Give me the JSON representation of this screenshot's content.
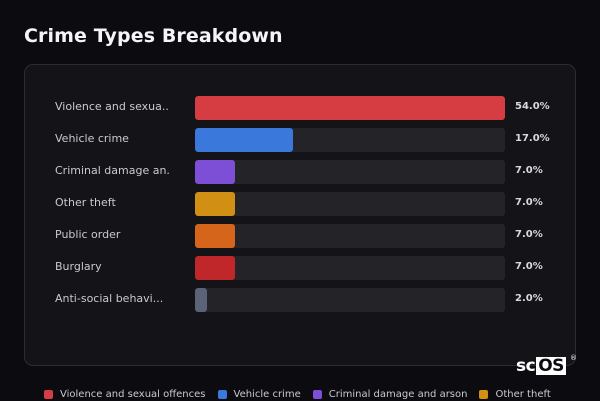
{
  "title": "Crime Types Breakdown",
  "logo": {
    "prefix": "sc",
    "boxed": "OS",
    "mark": "®"
  },
  "chart_data": {
    "type": "bar",
    "orientation": "horizontal",
    "title": "Crime Types Breakdown",
    "xlim": [
      0,
      54
    ],
    "categories": [
      "Violence and sexua...",
      "Vehicle crime",
      "Criminal damage an...",
      "Other theft",
      "Public order",
      "Burglary",
      "Anti-social behavi..."
    ],
    "values": [
      54.0,
      17.0,
      7.0,
      7.0,
      7.0,
      7.0,
      2.0
    ],
    "value_labels": [
      "54.0%",
      "17.0%",
      "7.0%",
      "7.0%",
      "7.0%",
      "7.0%",
      "2.0%"
    ],
    "colors": [
      "#d63d43",
      "#3a78db",
      "#7c4fd6",
      "#d18f14",
      "#d6651c",
      "#c0272a",
      "#5a6377"
    ]
  },
  "legend": [
    {
      "label": "Violence and sexual offences",
      "color": "#d63d43"
    },
    {
      "label": "Vehicle crime",
      "color": "#3a78db"
    },
    {
      "label": "Criminal damage and arson",
      "color": "#7c4fd6"
    },
    {
      "label": "Other theft",
      "color": "#d18f14"
    }
  ]
}
